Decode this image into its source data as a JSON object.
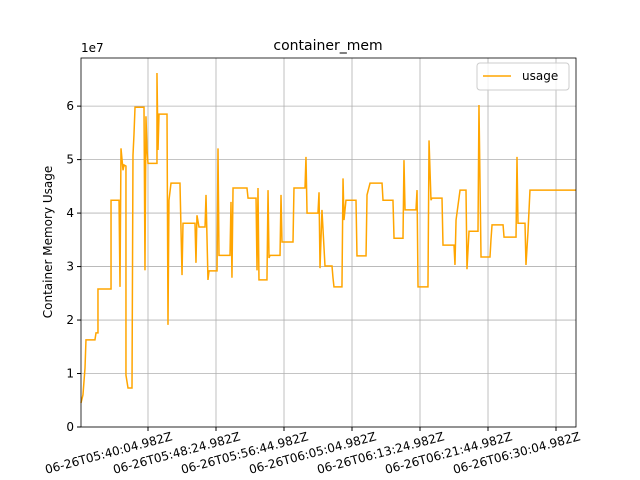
{
  "chart_data": {
    "type": "line",
    "title": "container_mem",
    "ylabel": "Container Memory Usage",
    "y_offset_label": "1e7",
    "x": [
      -8.21,
      -7.97,
      -7.72,
      -7.6,
      -6.5,
      -6.37,
      -6.13,
      -6.13,
      -4.53,
      -4.53,
      -3.55,
      -3.43,
      -3.31,
      -3.06,
      -2.94,
      -2.7,
      -2.7,
      -2.45,
      -1.96,
      -1.84,
      -1.72,
      -1.59,
      -0.49,
      -0.37,
      -0.25,
      -0.12,
      0,
      0.12,
      1.1,
      1.1,
      1.23,
      1.35,
      2.33,
      2.45,
      2.57,
      2.82,
      3.92,
      4.17,
      4.29,
      5.76,
      5.88,
      6.0,
      6.25,
      6.99,
      7.11,
      7.35,
      7.48,
      8.46,
      8.58,
      8.7,
      10.05,
      10.17,
      10.29,
      10.42,
      12.13,
      12.26,
      13.24,
      13.36,
      13.48,
      13.6,
      14.58,
      14.71,
      14.83,
      14.95,
      16.18,
      16.3,
      16.42,
      17.77,
      17.89,
      19.24,
      19.36,
      19.49,
      20.83,
      20.96,
      21.08,
      21.32,
      21.69,
      22.55,
      22.67,
      22.79,
      23.77,
      23.9,
      24.02,
      24.26,
      25.49,
      25.61,
      26.72,
      26.84,
      27.21,
      28.68,
      28.8,
      30.02,
      30.15,
      31.25,
      31.37,
      31.5,
      32.84,
      32.97,
      33.09,
      34.31,
      34.44,
      34.68,
      34.8,
      36.03,
      36.15,
      37.5,
      37.62,
      37.75,
      38.24,
      38.97,
      39.09,
      39.34,
      40.44,
      40.56,
      40.81,
      41.91,
      42.03,
      42.16,
      43.51,
      43.63,
      45.1,
      45.22,
      45.34,
      46.2,
      46.32,
      46.57,
      46.81,
      52.45
    ],
    "series": [
      {
        "name": "usage",
        "color": "#ffa500",
        "values": [
          0.45,
          0.6,
          1.1,
          1.63,
          1.63,
          1.76,
          1.76,
          2.58,
          2.58,
          4.24,
          4.24,
          2.62,
          5.21,
          4.8,
          4.9,
          4.88,
          0.97,
          0.73,
          0.73,
          5.08,
          5.46,
          5.98,
          5.98,
          2.93,
          5.81,
          5.18,
          4.93,
          4.93,
          4.93,
          6.62,
          5.18,
          5.85,
          5.85,
          1.91,
          4.24,
          4.56,
          4.56,
          2.84,
          3.81,
          3.81,
          3.07,
          3.96,
          3.74,
          3.74,
          4.34,
          2.75,
          2.92,
          2.92,
          5.21,
          3.21,
          3.21,
          4.21,
          2.79,
          4.47,
          4.47,
          4.28,
          4.28,
          2.93,
          4.47,
          2.75,
          2.75,
          4.43,
          3.16,
          3.21,
          3.21,
          4.34,
          3.46,
          3.46,
          4.47,
          4.47,
          5.05,
          4.0,
          4.0,
          4.39,
          2.97,
          4.06,
          3.01,
          3.01,
          2.79,
          2.62,
          2.62,
          4.65,
          3.87,
          4.24,
          4.24,
          3.2,
          3.2,
          4.34,
          4.56,
          4.56,
          4.24,
          4.24,
          3.53,
          3.53,
          4.99,
          4.06,
          4.06,
          4.43,
          2.62,
          2.62,
          5.36,
          4.24,
          4.28,
          4.28,
          3.4,
          3.4,
          3.03,
          3.87,
          4.43,
          4.43,
          2.95,
          3.66,
          3.66,
          6.02,
          3.18,
          3.18,
          3.5,
          3.78,
          3.78,
          3.55,
          3.55,
          5.05,
          3.81,
          3.81,
          3.03,
          3.66,
          4.43,
          4.43
        ]
      }
    ],
    "xlim": [
      -8.21,
      52.45
    ],
    "ylim": [
      0,
      6.9
    ],
    "xticks": [
      {
        "value": 0,
        "label": "06-26T05:40:04.982Z"
      },
      {
        "value": 8.333,
        "label": "06-26T05:48:24.982Z"
      },
      {
        "value": 16.667,
        "label": "06-26T05:56:44.982Z"
      },
      {
        "value": 25,
        "label": "06-26T06:05:04.982Z"
      },
      {
        "value": 33.333,
        "label": "06-26T06:13:24.982Z"
      },
      {
        "value": 41.667,
        "label": "06-26T06:21:44.982Z"
      },
      {
        "value": 50,
        "label": "06-26T06:30:04.982Z"
      }
    ],
    "yticks": [
      0,
      1,
      2,
      3,
      4,
      5,
      6
    ],
    "grid": true,
    "legend": "upper right"
  }
}
